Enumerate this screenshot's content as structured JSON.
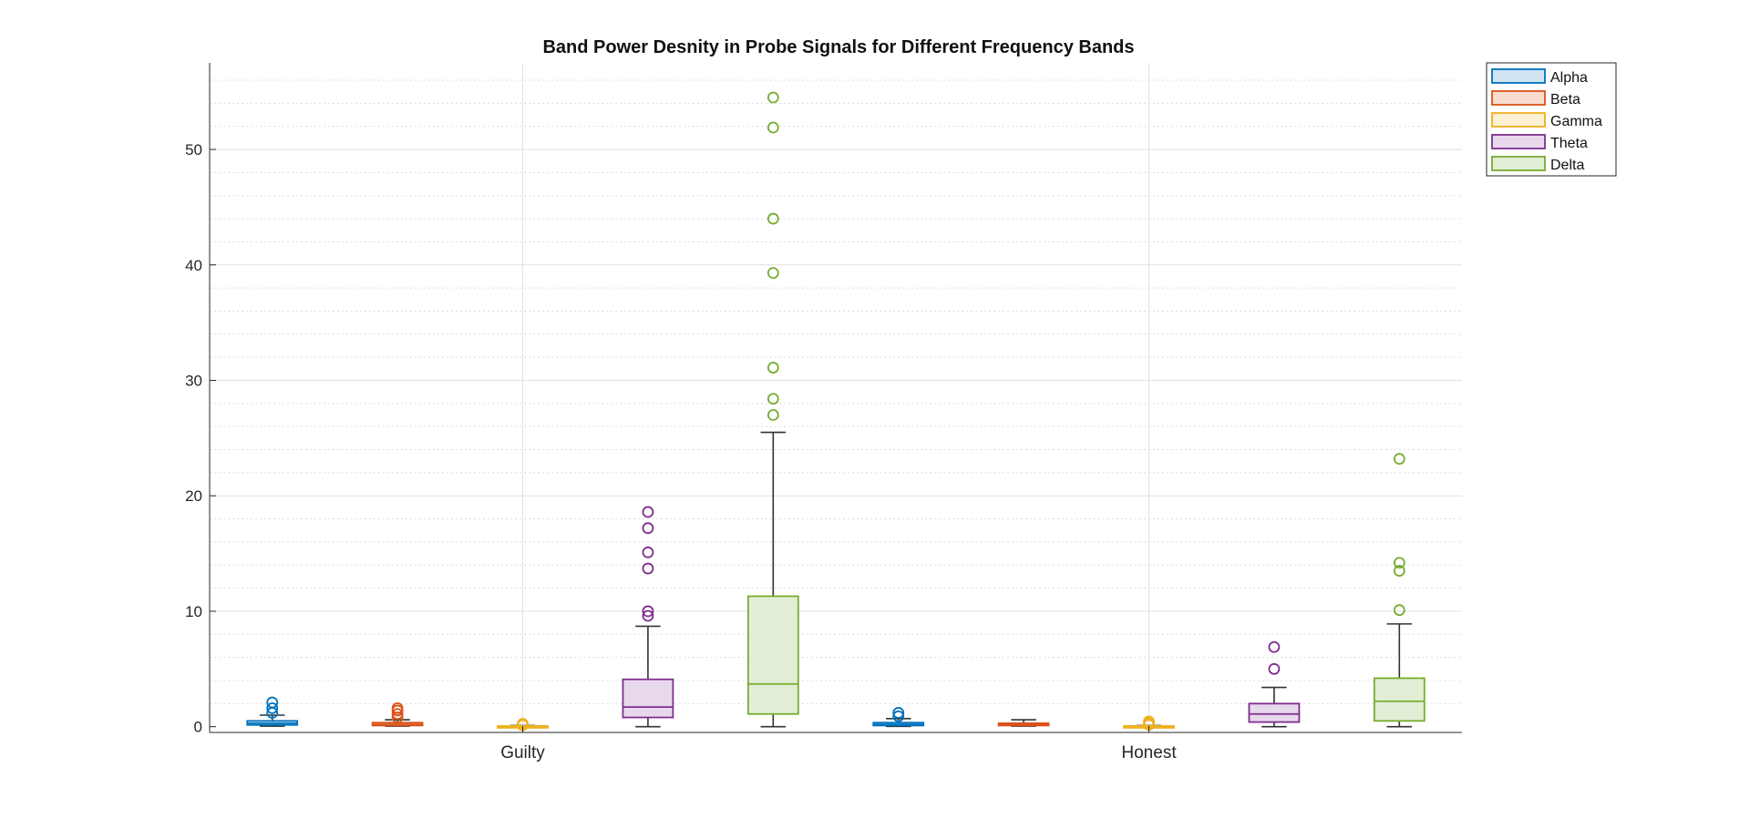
{
  "chart_data": {
    "type": "box",
    "title": "Band Power Desnity in Probe Signals for Different Frequency Bands",
    "xlabel": "",
    "ylabel": "",
    "categories": [
      "Guilty",
      "Honest"
    ],
    "ylim": [
      -0.5,
      57.5
    ],
    "yticks": [
      0,
      10,
      20,
      30,
      40,
      50
    ],
    "grid": {
      "major": true,
      "minor": true
    },
    "legend_position": "top-right outside",
    "series": [
      {
        "name": "Alpha",
        "color": "#0072BD",
        "fill": "#CFE3F2",
        "boxes": [
          {
            "whisker_low": 0.05,
            "q1": 0.15,
            "median": 0.3,
            "q3": 0.5,
            "whisker_high": 1.0,
            "outliers": [
              1.2,
              1.6,
              2.1
            ]
          },
          {
            "whisker_low": 0.03,
            "q1": 0.1,
            "median": 0.2,
            "q3": 0.35,
            "whisker_high": 0.7,
            "outliers": [
              0.9,
              1.2
            ]
          }
        ]
      },
      {
        "name": "Beta",
        "color": "#D95319",
        "fill": "#F8DDD0",
        "boxes": [
          {
            "whisker_low": 0.05,
            "q1": 0.1,
            "median": 0.2,
            "q3": 0.35,
            "whisker_high": 0.6,
            "outliers": [
              0.8,
              1.1,
              1.4,
              1.6
            ]
          },
          {
            "whisker_low": 0.05,
            "q1": 0.1,
            "median": 0.2,
            "q3": 0.3,
            "whisker_high": 0.6,
            "outliers": []
          }
        ]
      },
      {
        "name": "Gamma",
        "color": "#EDB120",
        "fill": "#FBF0D2",
        "boxes": [
          {
            "whisker_low": 0.0,
            "q1": 0.02,
            "median": 0.04,
            "q3": 0.06,
            "whisker_high": 0.1,
            "outliers": [
              0.12,
              0.18,
              0.25
            ]
          },
          {
            "whisker_low": 0.0,
            "q1": 0.02,
            "median": 0.04,
            "q3": 0.06,
            "whisker_high": 0.1,
            "outliers": [
              0.15,
              0.3,
              0.45
            ]
          }
        ]
      },
      {
        "name": "Theta",
        "color": "#7E2F8E",
        "fill": "#E8D8EB",
        "boxes": [
          {
            "whisker_low": 0.0,
            "q1": 0.8,
            "median": 1.7,
            "q3": 4.1,
            "whisker_high": 8.7,
            "outliers": [
              9.6,
              10.0,
              13.7,
              15.1,
              17.2,
              18.6
            ]
          },
          {
            "whisker_low": 0.0,
            "q1": 0.4,
            "median": 1.1,
            "q3": 2.0,
            "whisker_high": 3.4,
            "outliers": [
              5.0,
              6.9
            ]
          }
        ]
      },
      {
        "name": "Delta",
        "color": "#77AC30",
        "fill": "#E2EED5",
        "boxes": [
          {
            "whisker_low": 0.0,
            "q1": 1.1,
            "median": 3.7,
            "q3": 11.3,
            "whisker_high": 25.5,
            "outliers": [
              27.0,
              28.4,
              31.1,
              39.3,
              44.0,
              51.9,
              54.5
            ]
          },
          {
            "whisker_low": 0.0,
            "q1": 0.5,
            "median": 2.2,
            "q3": 4.2,
            "whisker_high": 8.9,
            "outliers": [
              10.1,
              13.5,
              14.2,
              23.2
            ]
          }
        ]
      }
    ]
  }
}
